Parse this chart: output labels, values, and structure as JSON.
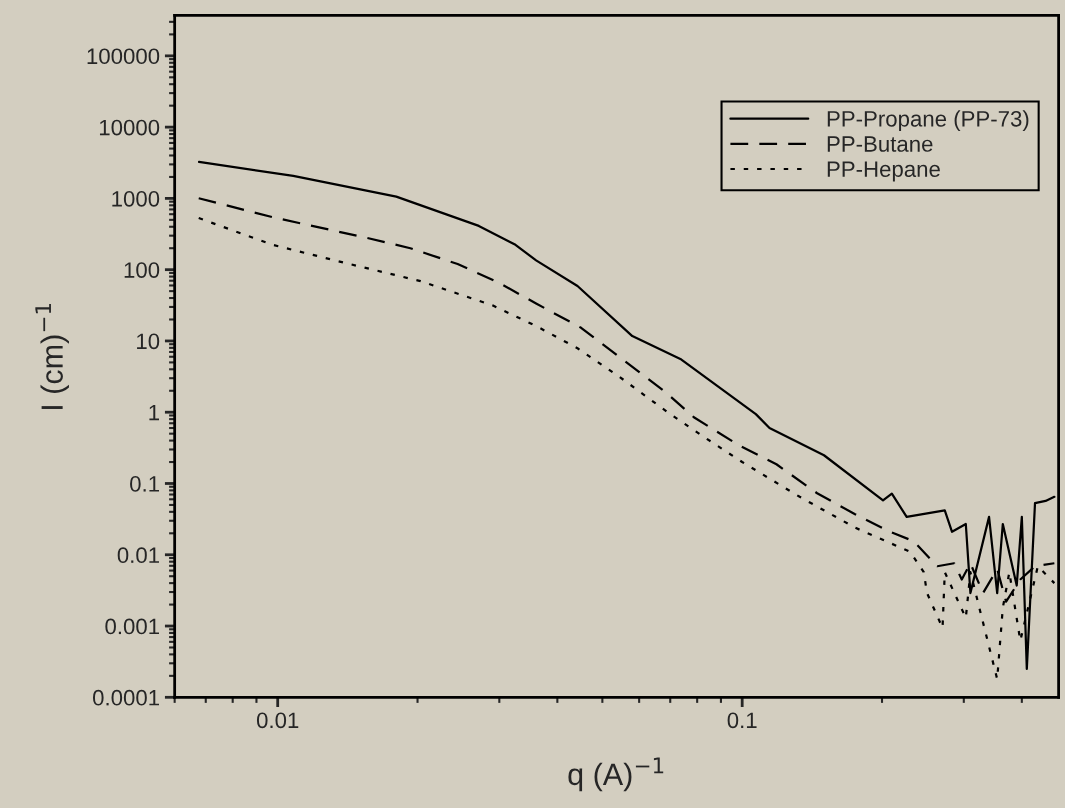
{
  "chart_data": {
    "type": "line",
    "xlabel": "q (A)$^{−1}$",
    "ylabel": "I (cm)$^{−1}$",
    "log": "xy",
    "xlim": [
      0.006,
      0.48
    ],
    "ylim": [
      0.0001,
      370000
    ],
    "xticks": [
      0.01,
      0.1
    ],
    "yticks": [
      0.0001,
      0.001,
      0.01,
      0.1,
      1,
      10,
      100,
      1000,
      10000,
      100000
    ],
    "grid": false,
    "legend": "top right",
    "marker": "none",
    "series": [
      {
        "name": "PP-Propane (PP-73)",
        "color": "#000000",
        "line_style": "solid",
        "x": [
          0.00677,
          0.0108,
          0.018,
          0.0271,
          0.0325,
          0.036,
          0.0442,
          0.058,
          0.0736,
          0.107,
          0.1145,
          0.15,
          0.201,
          0.21,
          0.226,
          0.273,
          0.283,
          0.303,
          0.31,
          0.34,
          0.354,
          0.364,
          0.39,
          0.4,
          0.41,
          0.427,
          0.45,
          0.47
        ],
        "values": [
          3250,
          2070,
          1060,
          411,
          223,
          135,
          59,
          11.7,
          5.6,
          0.94,
          0.6,
          0.249,
          0.058,
          0.072,
          0.034,
          0.042,
          0.021,
          0.027,
          0.0029,
          0.034,
          0.0029,
          0.027,
          0.0037,
          0.034,
          0.00025,
          0.053,
          0.057,
          0.065
        ]
      },
      {
        "name": "PP-Butane",
        "color": "#000000",
        "line_style": "dashed",
        "x": [
          0.00676,
          0.00975,
          0.0156,
          0.0193,
          0.0244,
          0.03,
          0.036,
          0.045,
          0.0688,
          0.0787,
          0.0983,
          0.1185,
          0.145,
          0.175,
          0.208,
          0.234,
          0.263,
          0.286,
          0.297,
          0.31,
          0.33,
          0.354,
          0.37,
          0.397,
          0.427,
          0.47
        ],
        "values": [
          1005,
          545,
          278,
          200,
          120,
          65,
          33.5,
          15.3,
          1.85,
          0.85,
          0.345,
          0.186,
          0.073,
          0.037,
          0.021,
          0.0155,
          0.0069,
          0.0076,
          0.0045,
          0.0076,
          0.0029,
          0.0063,
          0.0022,
          0.0045,
          0.0069,
          0.0076
        ]
      },
      {
        "name": "PP-Hepane",
        "color": "#000000",
        "line_style": "dotted",
        "x": [
          0.00676,
          0.00975,
          0.0142,
          0.0203,
          0.029,
          0.036,
          0.0442,
          0.0542,
          0.07,
          0.0815,
          0.1,
          0.133,
          0.175,
          0.23,
          0.246,
          0.25,
          0.27,
          0.273,
          0.303,
          0.31,
          0.354,
          0.364,
          0.376,
          0.397,
          0.433,
          0.47
        ],
        "values": [
          530,
          223,
          121,
          69,
          31.6,
          16.2,
          7.9,
          3.2,
          0.94,
          0.48,
          0.2,
          0.065,
          0.024,
          0.011,
          0.0057,
          0.0029,
          0.00094,
          0.0057,
          0.0013,
          0.0057,
          0.00018,
          0.0018,
          0.0057,
          0.00062,
          0.0069,
          0.004
        ]
      }
    ]
  }
}
